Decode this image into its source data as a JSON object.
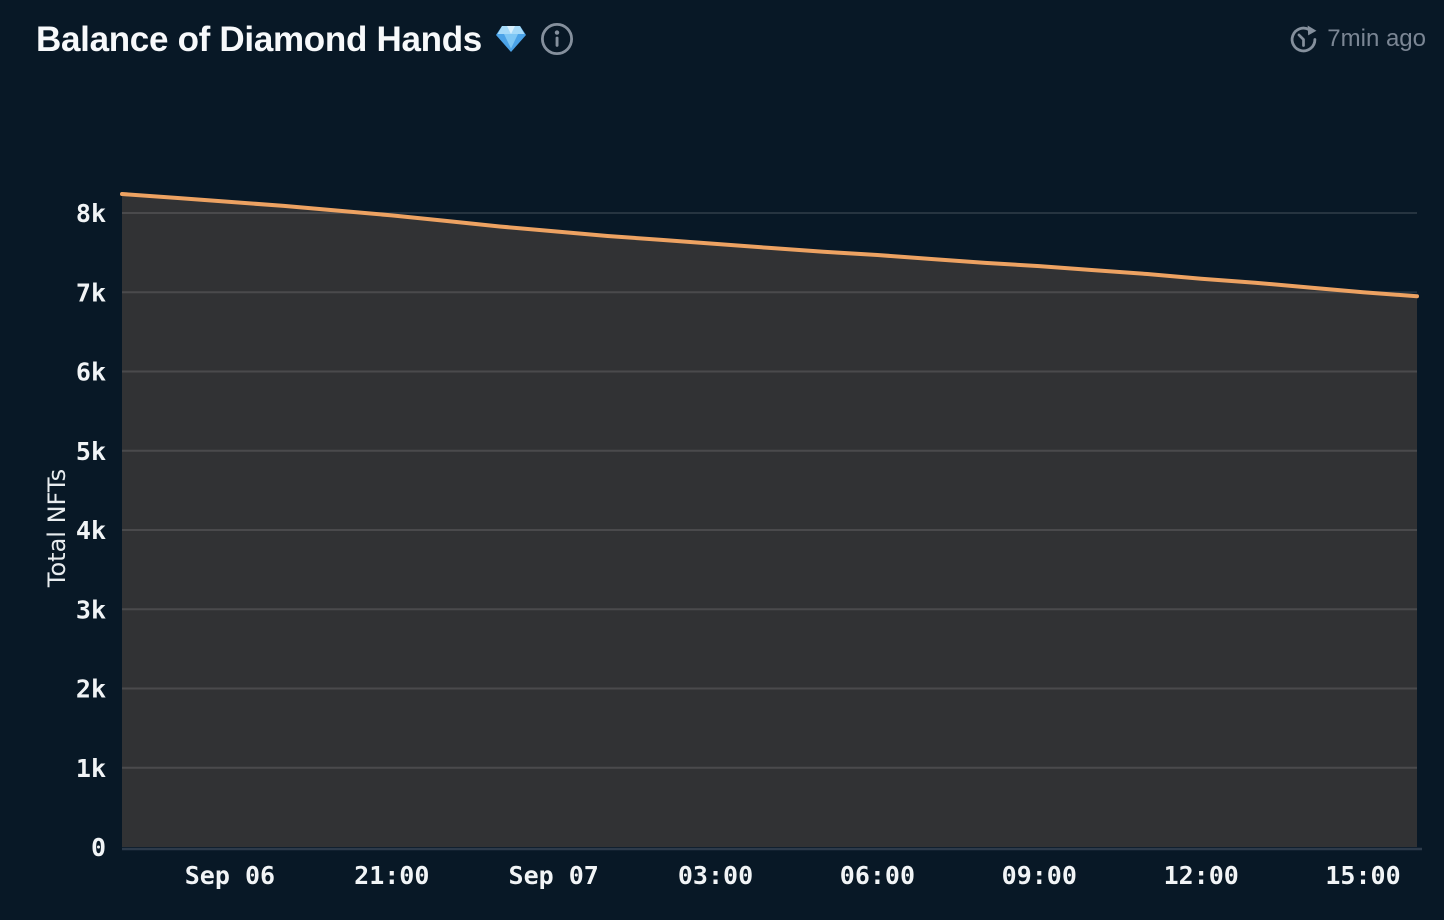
{
  "header": {
    "title": "Balance of Diamond Hands",
    "title_icon": "diamond-gem-icon",
    "info_icon": "info-icon",
    "updated_icon": "refresh-clock-icon",
    "updated": "7min ago"
  },
  "colors": {
    "background": "#081826",
    "line": "#eda262",
    "area_fill": "#313234",
    "grid": "rgba(255,255,255,0.12)",
    "axis_line": "#2d3b4b",
    "tick_text": "#f1f4f6",
    "muted_text": "#7b8694",
    "gem_blue": "#4ba3e8"
  },
  "chart_data": {
    "type": "area",
    "title": "Balance of Diamond Hands 💎",
    "ylabel": "Total NFTs",
    "xlabel": "",
    "ylim": [
      0,
      8500
    ],
    "grid": true,
    "legend_position": "none",
    "x": [
      "Sep 06 16:00",
      "Sep 06 17:00",
      "Sep 06 18:00",
      "Sep 06 19:00",
      "Sep 06 20:00",
      "Sep 06 21:00",
      "Sep 06 22:00",
      "Sep 06 23:00",
      "Sep 07 00:00",
      "Sep 07 01:00",
      "Sep 07 02:00",
      "Sep 07 03:00",
      "Sep 07 04:00",
      "Sep 07 05:00",
      "Sep 07 06:00",
      "Sep 07 07:00",
      "Sep 07 08:00",
      "Sep 07 09:00",
      "Sep 07 10:00",
      "Sep 07 11:00",
      "Sep 07 12:00",
      "Sep 07 13:00",
      "Sep 07 14:00",
      "Sep 07 15:00",
      "Sep 07 16:00"
    ],
    "series": [
      {
        "name": "Total NFTs",
        "values": [
          8240,
          8190,
          8140,
          8090,
          8030,
          7970,
          7900,
          7830,
          7770,
          7710,
          7660,
          7610,
          7560,
          7510,
          7470,
          7420,
          7370,
          7330,
          7280,
          7230,
          7170,
          7120,
          7060,
          7000,
          6950
        ]
      }
    ],
    "y_ticks": [
      {
        "value": 0,
        "label": "0"
      },
      {
        "value": 1000,
        "label": "1k"
      },
      {
        "value": 2000,
        "label": "2k"
      },
      {
        "value": 3000,
        "label": "3k"
      },
      {
        "value": 4000,
        "label": "4k"
      },
      {
        "value": 5000,
        "label": "5k"
      },
      {
        "value": 6000,
        "label": "6k"
      },
      {
        "value": 7000,
        "label": "7k"
      },
      {
        "value": 8000,
        "label": "8k"
      }
    ],
    "x_tick_indices": [
      2,
      5,
      8,
      11,
      14,
      17,
      20,
      23
    ],
    "x_tick_labels": [
      "Sep 06",
      "21:00",
      "Sep 07",
      "03:00",
      "06:00",
      "09:00",
      "12:00",
      "15:00"
    ]
  }
}
